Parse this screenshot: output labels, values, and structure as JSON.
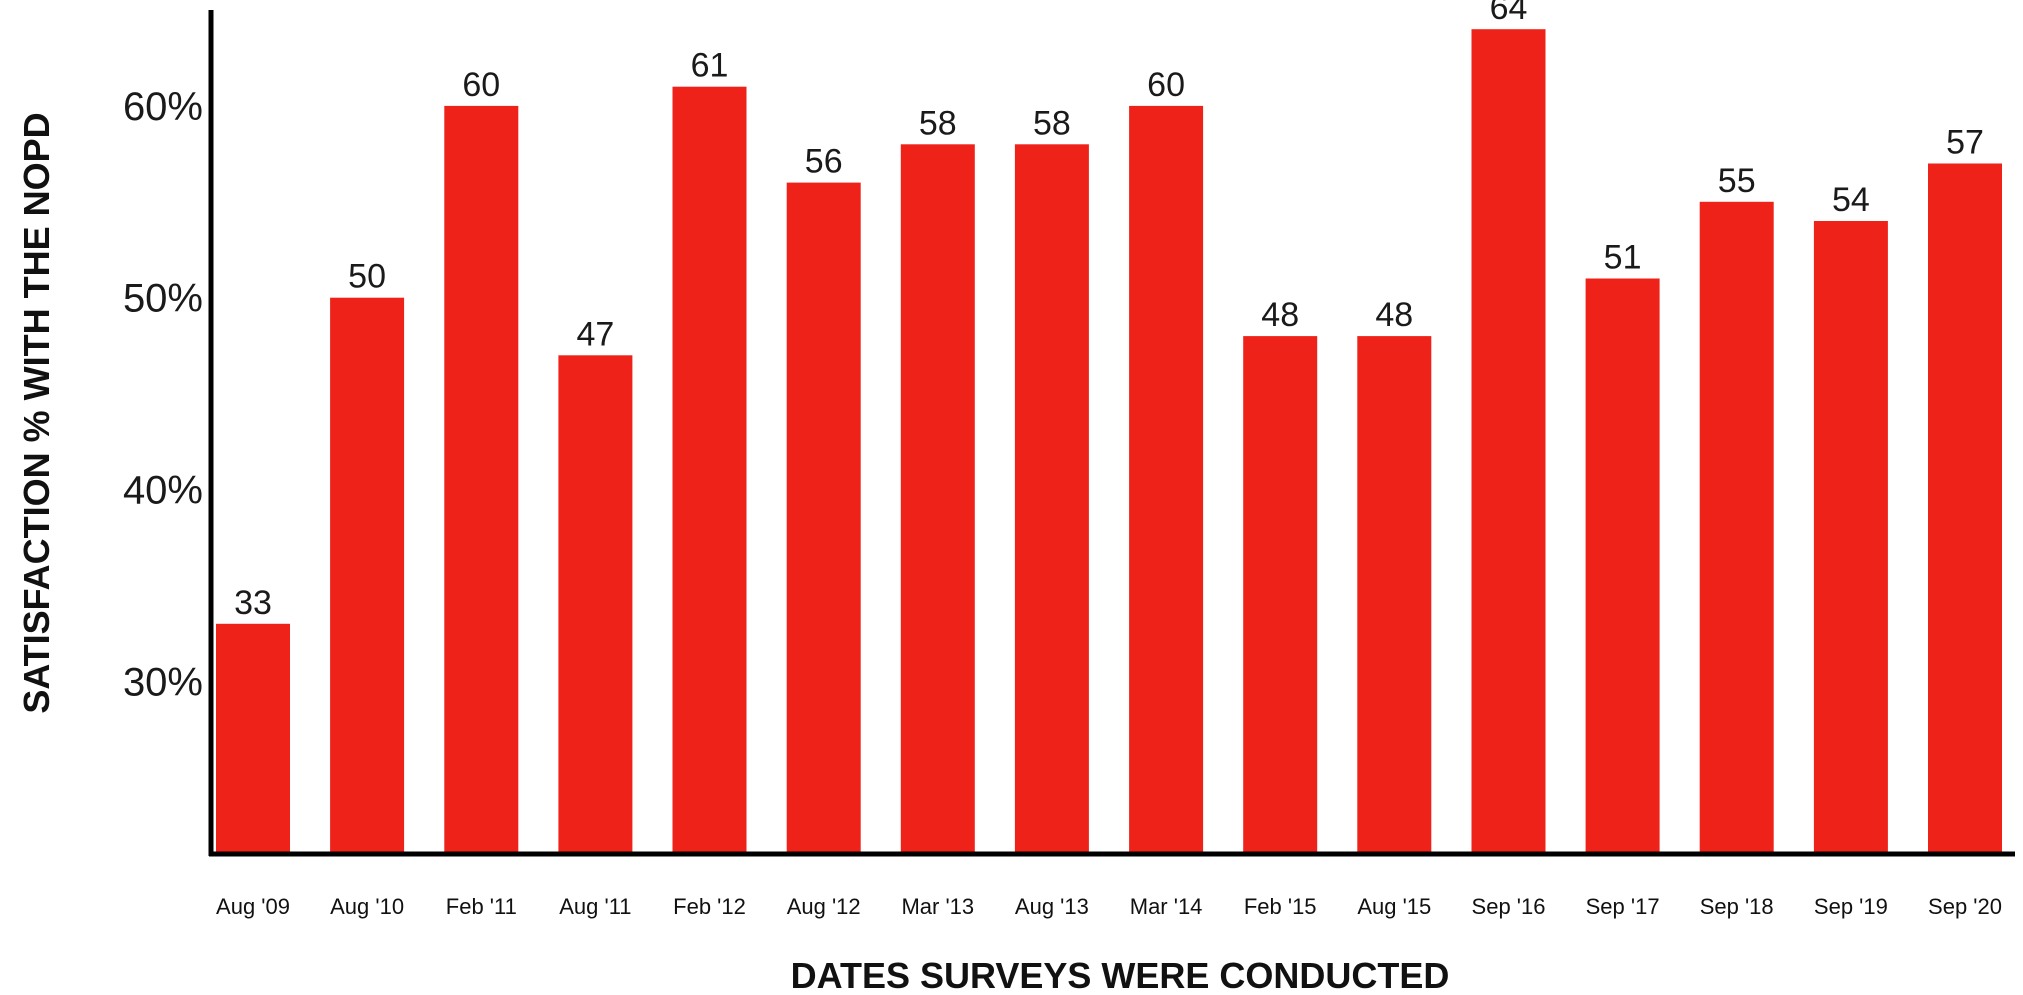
{
  "chart_data": {
    "type": "bar",
    "title": "",
    "xlabel": "DATES SURVEYS WERE CONDUCTED",
    "ylabel": "SATISFACTION % WITH THE NOPD",
    "categories": [
      "Aug '09",
      "Aug '10",
      "Feb '11",
      "Aug '11",
      "Feb '12",
      "Aug '12",
      "Mar '13",
      "Aug '13",
      "Mar '14",
      "Feb '15",
      "Aug '15",
      "Sep '16",
      "Sep '17",
      "Sep '18",
      "Sep '19",
      "Sep '20"
    ],
    "values": [
      33,
      50,
      60,
      47,
      61,
      56,
      58,
      58,
      60,
      48,
      48,
      64,
      51,
      55,
      54,
      57
    ],
    "data_labels": [
      "33",
      "50",
      "60",
      "47",
      "61",
      "56",
      "58",
      "58",
      "60",
      "48",
      "48",
      "64",
      "51",
      "55",
      "54",
      "57"
    ],
    "yticks": [
      30,
      40,
      50,
      60
    ],
    "ytick_labels": [
      "30%",
      "40%",
      "50%",
      "60%"
    ],
    "ylim": [
      21,
      65
    ],
    "grid": false,
    "legend": "none",
    "bar_color": "#EE2219",
    "axis_color": "#000000"
  }
}
